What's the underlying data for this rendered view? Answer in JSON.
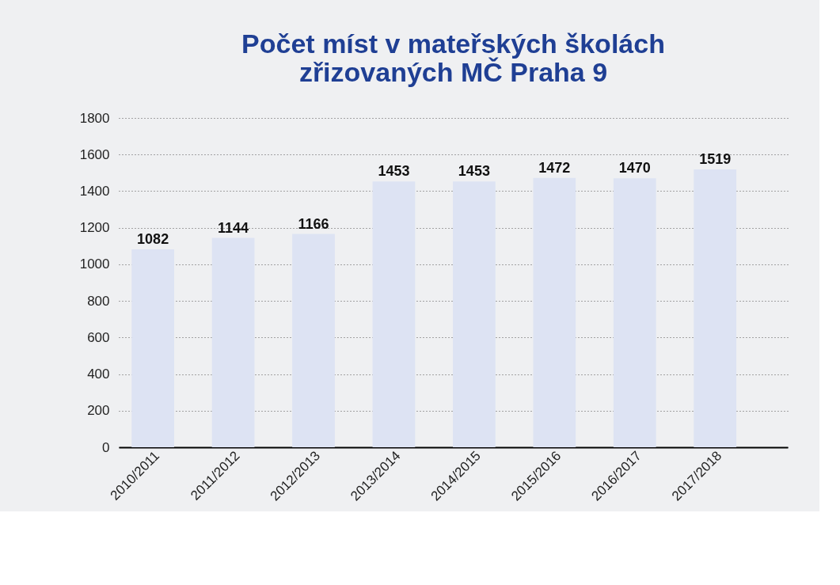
{
  "chart_data": {
    "type": "bar",
    "title": "Počet míst v mateřských školách\nzřizovaných MČ Praha 9",
    "categories": [
      "2010/2011",
      "2011/2012",
      "2012/2013",
      "2013/2014",
      "2014/2015",
      "2015/2016",
      "2016/2017",
      "2017/2018"
    ],
    "values": [
      1082,
      1144,
      1166,
      1453,
      1453,
      1472,
      1470,
      1519
    ],
    "color": "#dde3f3",
    "ylim": [
      0,
      1800
    ],
    "yticks": [
      0,
      200,
      400,
      600,
      800,
      1000,
      1200,
      1400,
      1600,
      1800
    ],
    "grid": "y",
    "line_style": "dotted",
    "data_labels": true
  }
}
